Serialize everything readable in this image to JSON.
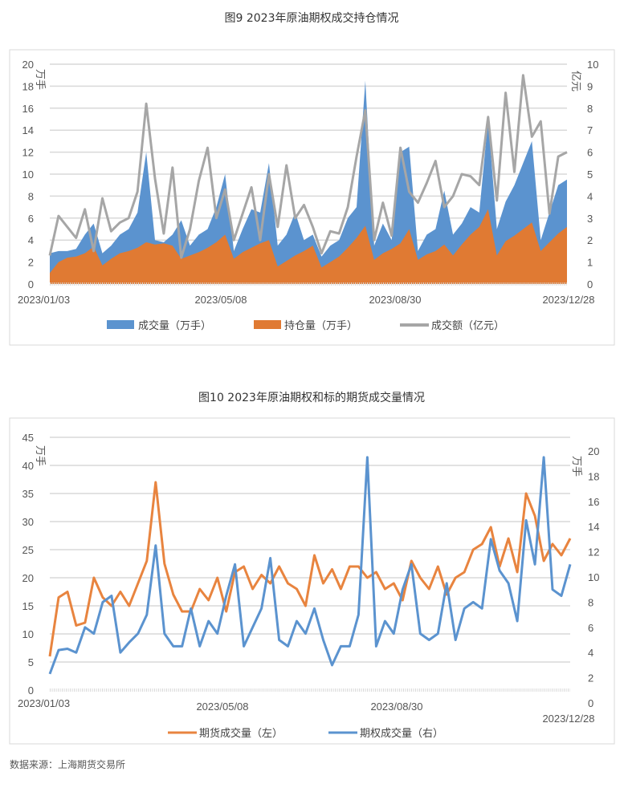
{
  "chart_data": [
    {
      "type": "area+line",
      "title": "图9 2023年原油期权成交持仓情况",
      "x_tick_labels": [
        "2023/01/03",
        "2023/05/08",
        "2023/08/30",
        "2023/12/28"
      ],
      "left_axis": {
        "unit": "万手",
        "ylim": [
          0,
          20
        ],
        "ticks": [
          0,
          2,
          4,
          6,
          8,
          10,
          12,
          14,
          16,
          18,
          20
        ]
      },
      "right_axis": {
        "unit": "亿元",
        "ylim": [
          0,
          10
        ],
        "ticks": [
          0,
          1,
          2,
          3,
          4,
          5,
          6,
          7,
          8,
          9,
          10
        ]
      },
      "grid": true,
      "legend_position": "bottom",
      "series": [
        {
          "name": "成交量（万手）",
          "type": "area",
          "axis": "left",
          "color": "#5b93cf",
          "values": [
            2.8,
            3.0,
            3.0,
            3.2,
            4.5,
            5.5,
            2.8,
            3.5,
            4.5,
            5.0,
            6.5,
            12.0,
            4.0,
            3.8,
            4.5,
            5.8,
            3.5,
            4.5,
            5.0,
            7.0,
            10.0,
            3.0,
            5.0,
            6.8,
            6.5,
            11.0,
            3.5,
            4.5,
            6.5,
            4.0,
            4.5,
            2.5,
            3.5,
            4.0,
            6.0,
            7.0,
            18.5,
            3.5,
            5.5,
            4.0,
            12.0,
            12.5,
            3.0,
            4.5,
            5.0,
            8.5,
            4.5,
            5.5,
            7.0,
            6.5,
            15.0,
            5.0,
            7.5,
            9.0,
            11.0,
            13.0,
            4.0,
            6.5,
            9.0,
            9.5
          ]
        },
        {
          "name": "持仓量（万手）",
          "type": "area",
          "axis": "left",
          "color": "#e07a33",
          "values": [
            1.0,
            2.0,
            2.4,
            2.5,
            2.8,
            3.4,
            1.7,
            2.3,
            2.8,
            3.0,
            3.3,
            3.8,
            3.6,
            3.7,
            3.5,
            2.3,
            2.6,
            2.9,
            3.3,
            3.8,
            4.5,
            2.3,
            2.9,
            3.3,
            3.7,
            4.0,
            1.6,
            2.1,
            2.6,
            3.0,
            3.5,
            1.5,
            2.0,
            2.5,
            3.3,
            4.2,
            5.3,
            2.2,
            2.8,
            3.2,
            3.7,
            5.0,
            2.2,
            2.7,
            3.0,
            3.6,
            2.6,
            3.6,
            4.5,
            5.2,
            6.8,
            2.6,
            3.9,
            4.4,
            5.0,
            5.6,
            3.0,
            3.8,
            4.6,
            5.2
          ]
        },
        {
          "name": "成交额（亿元）",
          "type": "line",
          "axis": "right",
          "color": "#a6a6a6",
          "values": [
            1.3,
            3.1,
            2.6,
            2.1,
            3.4,
            1.5,
            3.9,
            2.4,
            2.8,
            3.0,
            4.2,
            8.2,
            4.8,
            2.3,
            5.3,
            1.2,
            2.5,
            4.7,
            6.2,
            3.0,
            4.3,
            2.0,
            3.2,
            4.4,
            2.0,
            5.0,
            2.6,
            5.4,
            3.0,
            3.6,
            2.6,
            1.4,
            2.4,
            2.3,
            3.5,
            5.8,
            7.9,
            2.0,
            3.7,
            2.2,
            6.2,
            4.2,
            3.7,
            4.6,
            5.6,
            3.5,
            4.0,
            5.0,
            4.9,
            4.5,
            7.6,
            3.8,
            8.7,
            5.1,
            9.5,
            6.7,
            7.4,
            3.2,
            5.8,
            6.0
          ]
        }
      ]
    },
    {
      "type": "line",
      "title": "图10 2023年原油期权和标的期货成交量情况",
      "x_tick_labels": [
        "2023/01/03",
        "2023/05/08",
        "2023/08/30",
        "2023/12/28"
      ],
      "left_axis": {
        "unit": "万手",
        "ylim": [
          0,
          45
        ],
        "ticks": [
          0,
          5,
          10,
          15,
          20,
          25,
          30,
          35,
          40,
          45
        ]
      },
      "right_axis": {
        "unit": "万手",
        "ylim": [
          0,
          20
        ],
        "ticks": [
          0,
          2,
          4,
          6,
          8,
          10,
          12,
          14,
          16,
          18,
          20
        ]
      },
      "grid": true,
      "legend_position": "bottom",
      "series": [
        {
          "name": "期货成交量（左）",
          "axis": "left",
          "color": "#e8843f",
          "values": [
            6,
            16.5,
            17.5,
            11.5,
            12,
            20,
            16.5,
            15,
            17.5,
            15,
            19,
            23,
            37,
            22.5,
            17,
            14,
            14,
            18,
            16,
            20,
            14,
            21,
            22,
            18,
            20.5,
            19,
            22,
            19,
            18,
            15,
            24,
            19,
            21.5,
            18,
            22,
            22,
            20,
            21,
            18,
            19,
            16,
            23,
            20,
            18,
            22,
            17,
            20,
            21,
            25,
            26,
            29,
            22,
            27,
            21,
            35,
            31,
            23,
            26,
            24,
            27
          ]
        },
        {
          "name": "期权成交量（右）",
          "axis": "right",
          "color": "#5b93cf",
          "values": [
            2.3,
            4.2,
            4.3,
            4.0,
            6.0,
            5.5,
            8.0,
            8.5,
            4.0,
            4.8,
            5.5,
            7.0,
            12.5,
            5.5,
            4.5,
            4.5,
            7.5,
            4.5,
            6.5,
            5.5,
            8.5,
            11.0,
            4.5,
            6.0,
            7.5,
            11.5,
            5.0,
            4.5,
            6.5,
            5.5,
            7.5,
            5.0,
            3.0,
            4.5,
            4.5,
            7.0,
            19.5,
            4.5,
            6.5,
            5.5,
            9.0,
            11.0,
            5.5,
            5.0,
            5.5,
            9.5,
            5.0,
            7.5,
            8.0,
            7.5,
            13.0,
            10.5,
            9.5,
            6.5,
            14.5,
            11.0,
            19.5,
            9.0,
            8.5,
            11.0
          ]
        }
      ]
    }
  ],
  "source_note": "数据来源：上海期货交易所"
}
